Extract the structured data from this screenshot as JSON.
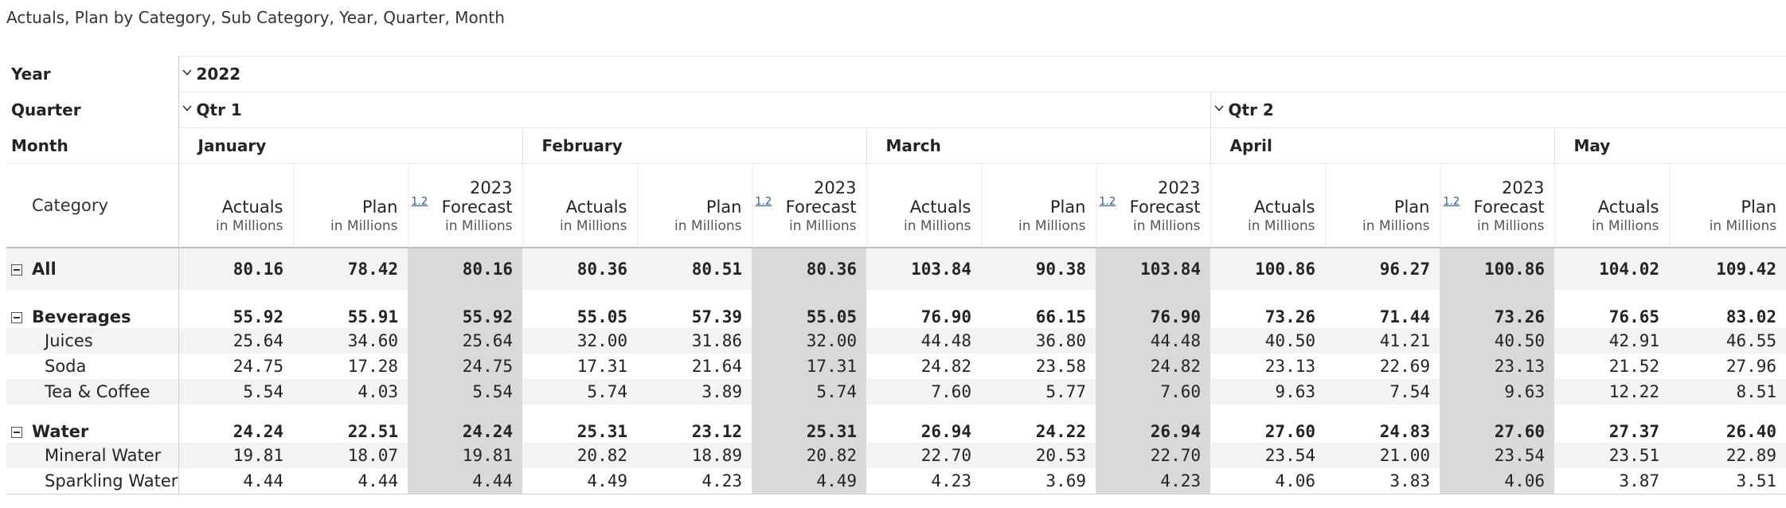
{
  "title": "Actuals, Plan by Category, Sub Category, Year, Quarter, Month",
  "row_labels": {
    "year": "Year",
    "quarter": "Quarter",
    "month": "Month",
    "category": "Category"
  },
  "year": "2022",
  "quarters": [
    "Qtr 1",
    "Qtr 2"
  ],
  "months": [
    "January",
    "February",
    "March",
    "April",
    "May"
  ],
  "measures": {
    "actuals": "Actuals",
    "plan": "Plan",
    "forecast_line1": "2023",
    "forecast_line2": "Forecast",
    "unit": "in Millions",
    "index_icon_label": "1.2"
  },
  "rows": [
    {
      "label": "All",
      "level": "all",
      "values": [
        "80.16",
        "78.42",
        "80.16",
        "80.36",
        "80.51",
        "80.36",
        "103.84",
        "90.38",
        "103.84",
        "100.86",
        "96.27",
        "100.86",
        "104.02",
        "109.42"
      ]
    },
    {
      "label": "Beverages",
      "level": "group",
      "values": [
        "55.92",
        "55.91",
        "55.92",
        "55.05",
        "57.39",
        "55.05",
        "76.90",
        "66.15",
        "76.90",
        "73.26",
        "71.44",
        "73.26",
        "76.65",
        "83.02"
      ]
    },
    {
      "label": "Juices",
      "level": "child",
      "values": [
        "25.64",
        "34.60",
        "25.64",
        "32.00",
        "31.86",
        "32.00",
        "44.48",
        "36.80",
        "44.48",
        "40.50",
        "41.21",
        "40.50",
        "42.91",
        "46.55"
      ]
    },
    {
      "label": "Soda",
      "level": "child",
      "values": [
        "24.75",
        "17.28",
        "24.75",
        "17.31",
        "21.64",
        "17.31",
        "24.82",
        "23.58",
        "24.82",
        "23.13",
        "22.69",
        "23.13",
        "21.52",
        "27.96"
      ]
    },
    {
      "label": "Tea & Coffee",
      "level": "child",
      "values": [
        "5.54",
        "4.03",
        "5.54",
        "5.74",
        "3.89",
        "5.74",
        "7.60",
        "5.77",
        "7.60",
        "9.63",
        "7.54",
        "9.63",
        "12.22",
        "8.51"
      ]
    },
    {
      "label": "Water",
      "level": "group",
      "values": [
        "24.24",
        "22.51",
        "24.24",
        "25.31",
        "23.12",
        "25.31",
        "26.94",
        "24.22",
        "26.94",
        "27.60",
        "24.83",
        "27.60",
        "27.37",
        "26.40"
      ]
    },
    {
      "label": "Mineral Water",
      "level": "child",
      "values": [
        "19.81",
        "18.07",
        "19.81",
        "20.82",
        "18.89",
        "20.82",
        "22.70",
        "20.53",
        "22.70",
        "23.54",
        "21.00",
        "23.54",
        "23.51",
        "22.89"
      ]
    },
    {
      "label": "Sparkling Water",
      "level": "child",
      "values": [
        "4.44",
        "4.44",
        "4.44",
        "4.49",
        "4.23",
        "4.49",
        "4.23",
        "3.69",
        "4.23",
        "4.06",
        "3.83",
        "4.06",
        "3.87",
        "3.51"
      ]
    }
  ]
}
